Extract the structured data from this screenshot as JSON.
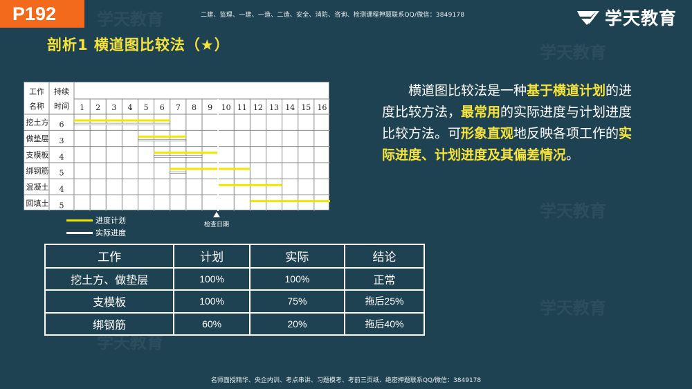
{
  "page_label": "P192",
  "top_note": "二建、监理、一建、一造、二造、安全、消防、咨询、检测课程押题联系QQ/微信：3849178",
  "brand": {
    "name": "学天教育",
    "logo_icon": "xuetian-logo-icon"
  },
  "section_title": "剖析1  横道图比较法（★）",
  "watermark_text": "学天教育",
  "gantt": {
    "header_col1_top": "工作",
    "header_col1_bottom": "名称",
    "header_col2_top": "持续",
    "header_col2_bottom": "时间",
    "days": [
      "1",
      "2",
      "3",
      "4",
      "5",
      "6",
      "7",
      "8",
      "9",
      "10",
      "11",
      "12",
      "13",
      "14",
      "15",
      "16"
    ],
    "rows": [
      {
        "name": "挖土方",
        "duration": "6"
      },
      {
        "name": "做垫层",
        "duration": "3"
      },
      {
        "name": "支模板",
        "duration": "4"
      },
      {
        "name": "绑钢筋",
        "duration": "5"
      },
      {
        "name": "混凝土",
        "duration": "4"
      },
      {
        "name": "回填土",
        "duration": "5"
      }
    ],
    "check_date_label": "检查日期"
  },
  "chart_data": {
    "type": "gantt",
    "x_categories": [
      "1",
      "2",
      "3",
      "4",
      "5",
      "6",
      "7",
      "8",
      "9",
      "10",
      "11",
      "12",
      "13",
      "14",
      "15",
      "16"
    ],
    "check_day": 9,
    "tasks": [
      {
        "name": "挖土方",
        "plan_start": 0,
        "plan_end": 6,
        "actual_start": 0,
        "actual_end": 6
      },
      {
        "name": "做垫层",
        "plan_start": 4,
        "plan_end": 7,
        "actual_start": 4,
        "actual_end": 7
      },
      {
        "name": "支模板",
        "plan_start": 5,
        "plan_end": 9,
        "actual_start": 5,
        "actual_end": 8
      },
      {
        "name": "绑钢筋",
        "plan_start": 6,
        "plan_end": 11,
        "actual_start": 6,
        "actual_end": 7
      },
      {
        "name": "混凝土",
        "plan_start": 9,
        "plan_end": 13,
        "actual_start": null,
        "actual_end": null
      },
      {
        "name": "回填土",
        "plan_start": 11,
        "plan_end": 16,
        "actual_start": null,
        "actual_end": null
      }
    ],
    "legend": [
      {
        "label": "进度计划",
        "color": "#f2e600"
      },
      {
        "label": "实际进度",
        "color": "#ffffff"
      }
    ]
  },
  "colors": {
    "plan": "#f2e600",
    "actual": "#ffffff",
    "highlight": "#f6e33b",
    "accent": "#f36a1d",
    "background": "#1f4252"
  },
  "description": {
    "p1": "横道图比较法是一种",
    "h1": "基于横道计划",
    "p2": "的进度比较方法，",
    "h2": "最常用",
    "p3": "的实际进度与计划进度比较方法。可",
    "h3": "形象直观",
    "p4": "地反映各项工作的",
    "h4": "实际进度、计划进度及其偏差情况",
    "p5": "。"
  },
  "comparison_table": {
    "headers": [
      "工作",
      "计划",
      "实际",
      "结论"
    ],
    "rows": [
      [
        "挖土方、做垫层",
        "100%",
        "100%",
        "正常"
      ],
      [
        "支模板",
        "100%",
        "75%",
        "拖后25%"
      ],
      [
        "绑钢筋",
        "60%",
        "20%",
        "拖后40%"
      ]
    ]
  },
  "footer_note": "名师面授精华、央企内训、考点串讲、习题模考、考前三页纸、绝密押题联系QQ/微信：3849178"
}
